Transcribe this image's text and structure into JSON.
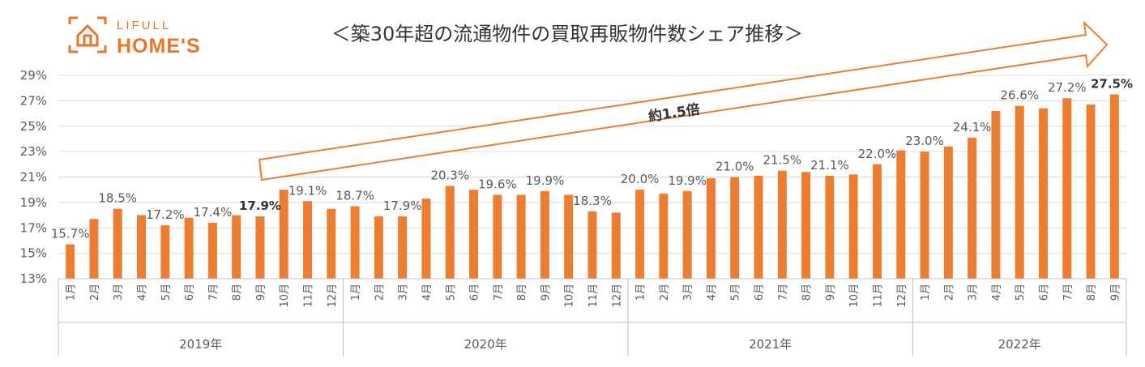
{
  "logo": {
    "top": "LIFULL",
    "main": "HOME'S"
  },
  "chart_data": {
    "type": "bar",
    "title": "＜築30年超の流通物件の買取再販物件数シェア推移＞",
    "ylim": [
      13,
      29
    ],
    "yticks": [
      "13%",
      "15%",
      "17%",
      "19%",
      "21%",
      "23%",
      "25%",
      "27%",
      "29%"
    ],
    "ytick_values": [
      13,
      15,
      17,
      19,
      21,
      23,
      25,
      27,
      29
    ],
    "grid": true,
    "color": "#ed7d31",
    "months": [
      "1月",
      "2月",
      "3月",
      "4月",
      "5月",
      "6月",
      "7月",
      "8月",
      "9月",
      "10月",
      "11月",
      "12月",
      "1月",
      "2月",
      "3月",
      "4月",
      "5月",
      "6月",
      "7月",
      "8月",
      "9月",
      "10月",
      "11月",
      "12月",
      "1月",
      "2月",
      "3月",
      "4月",
      "5月",
      "6月",
      "7月",
      "8月",
      "9月",
      "10月",
      "11月",
      "12月",
      "1月",
      "2月",
      "3月",
      "4月",
      "5月",
      "6月",
      "7月",
      "8月",
      "9月"
    ],
    "years": [
      {
        "label": "2019年",
        "start": 0,
        "count": 12
      },
      {
        "label": "2020年",
        "start": 12,
        "count": 12
      },
      {
        "label": "2021年",
        "start": 24,
        "count": 12
      },
      {
        "label": "2022年",
        "start": 36,
        "count": 9
      }
    ],
    "values": [
      15.7,
      17.7,
      18.5,
      18.0,
      17.2,
      17.8,
      17.4,
      18.0,
      17.9,
      20.0,
      19.1,
      18.5,
      18.7,
      17.9,
      17.9,
      19.3,
      20.3,
      20.0,
      19.6,
      19.6,
      19.9,
      19.6,
      18.3,
      18.2,
      20.0,
      19.7,
      19.9,
      20.9,
      21.0,
      21.1,
      21.5,
      21.4,
      21.1,
      21.2,
      22.0,
      23.1,
      23.0,
      23.4,
      24.1,
      26.2,
      26.6,
      26.4,
      27.2,
      26.7,
      27.5
    ],
    "data_labels": [
      {
        "index": 0,
        "text": "15.7%",
        "bold": false
      },
      {
        "index": 2,
        "text": "18.5%",
        "bold": false
      },
      {
        "index": 4,
        "text": "17.2%",
        "bold": false
      },
      {
        "index": 6,
        "text": "17.4%",
        "bold": false
      },
      {
        "index": 8,
        "text": "17.9%",
        "bold": true
      },
      {
        "index": 10,
        "text": "19.1%",
        "bold": false
      },
      {
        "index": 12,
        "text": "18.7%",
        "bold": false
      },
      {
        "index": 14,
        "text": "17.9%",
        "bold": false
      },
      {
        "index": 16,
        "text": "20.3%",
        "bold": false
      },
      {
        "index": 18,
        "text": "19.6%",
        "bold": false
      },
      {
        "index": 20,
        "text": "19.9%",
        "bold": false
      },
      {
        "index": 22,
        "text": "18.3%",
        "bold": false
      },
      {
        "index": 24,
        "text": "20.0%",
        "bold": false
      },
      {
        "index": 26,
        "text": "19.9%",
        "bold": false
      },
      {
        "index": 28,
        "text": "21.0%",
        "bold": false
      },
      {
        "index": 30,
        "text": "21.5%",
        "bold": false
      },
      {
        "index": 32,
        "text": "21.1%",
        "bold": false
      },
      {
        "index": 34,
        "text": "22.0%",
        "bold": false
      },
      {
        "index": 36,
        "text": "23.0%",
        "bold": false
      },
      {
        "index": 38,
        "text": "24.1%",
        "bold": false
      },
      {
        "index": 40,
        "text": "26.6%",
        "bold": false
      },
      {
        "index": 42,
        "text": "27.2%",
        "bold": false
      },
      {
        "index": 44,
        "text": "27.5%",
        "bold": true
      }
    ],
    "annotation": "約1.5倍"
  }
}
